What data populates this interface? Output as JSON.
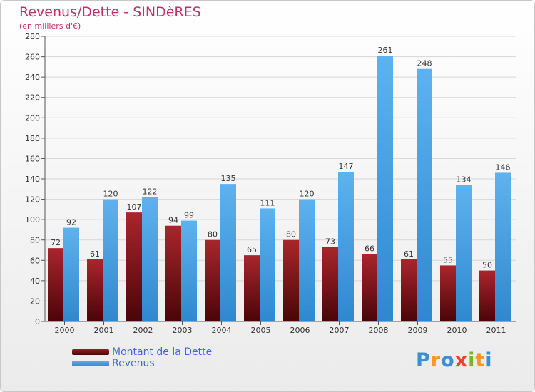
{
  "chart_data": {
    "type": "bar",
    "title": "Revenus/Dette - SINDèRES",
    "subtitle": "(en milliers d'€)",
    "xlabel": "",
    "ylabel": "",
    "ylim": [
      0,
      280
    ],
    "yticks": [
      0,
      20,
      40,
      60,
      80,
      100,
      120,
      140,
      160,
      180,
      200,
      220,
      240,
      260,
      280
    ],
    "grid": true,
    "categories": [
      "2000",
      "2001",
      "2002",
      "2003",
      "2004",
      "2005",
      "2006",
      "2007",
      "2008",
      "2009",
      "2010",
      "2011"
    ],
    "series": [
      {
        "name": "Montant de la Dette",
        "color": "#7a0f14",
        "values": [
          72,
          61,
          107,
          94,
          80,
          65,
          80,
          73,
          66,
          61,
          55,
          50
        ]
      },
      {
        "name": "Revenus",
        "color": "#4fa6e6",
        "values": [
          92,
          120,
          122,
          99,
          135,
          111,
          120,
          147,
          261,
          248,
          134,
          146
        ]
      }
    ],
    "legend_position": "bottom-left"
  },
  "logo": {
    "text": "Proxiti",
    "letters": [
      "P",
      "r",
      "o",
      "x",
      "i",
      "t",
      "i"
    ],
    "colors": [
      "#3a8fd6",
      "#f29a1f",
      "#3a8fd6",
      "#e8452c",
      "#7ab32e",
      "#f29a1f",
      "#3a8fd6"
    ]
  }
}
